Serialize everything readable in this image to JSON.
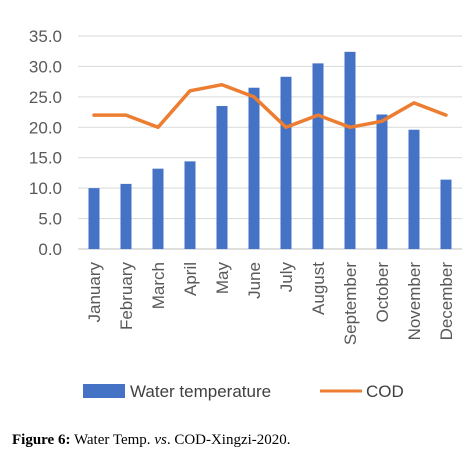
{
  "chart_data": {
    "type": "bar",
    "categories": [
      "January",
      "February",
      "March",
      "April",
      "May",
      "June",
      "July",
      "August",
      "September",
      "October",
      "November",
      "December"
    ],
    "series": [
      {
        "name": "Water temperature",
        "type": "bar",
        "color": "#4472C4",
        "values": [
          10.0,
          10.7,
          13.2,
          14.4,
          23.5,
          26.5,
          28.3,
          30.5,
          32.4,
          22.1,
          19.6,
          11.4
        ]
      },
      {
        "name": "COD",
        "type": "line",
        "color": "#ED7D31",
        "values": [
          22.0,
          22.0,
          20.0,
          26.0,
          27.0,
          25.0,
          20.0,
          22.0,
          20.0,
          21.0,
          24.0,
          22.0
        ]
      }
    ],
    "y_ticks": [
      "0.0",
      "5.0",
      "10.0",
      "15.0",
      "20.0",
      "25.0",
      "30.0",
      "35.0"
    ],
    "ylim": [
      0,
      35
    ],
    "grid": true,
    "legend_position": "bottom"
  },
  "caption": {
    "lead": "Figure 6:",
    "part1": " Water Temp. ",
    "vs": "vs",
    "part2": ". COD-Xingzi-2020."
  }
}
